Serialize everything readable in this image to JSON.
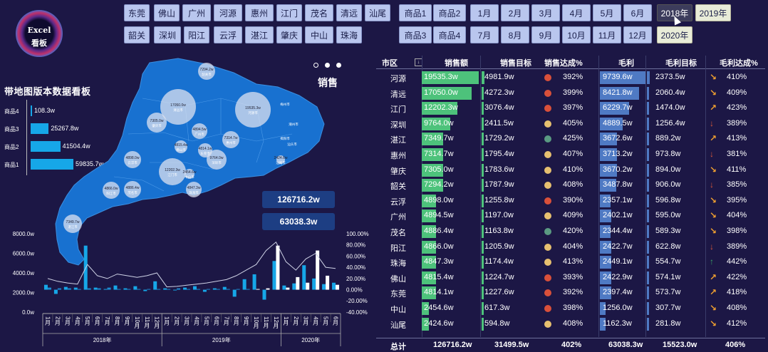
{
  "logo": {
    "line1": "Excel",
    "line2": "看板"
  },
  "slicers": {
    "cities": [
      "东莞",
      "佛山",
      "广州",
      "河源",
      "惠州",
      "江门",
      "茂名",
      "清远",
      "汕尾",
      "韶关",
      "深圳",
      "阳江",
      "云浮",
      "湛江",
      "肇庆",
      "中山",
      "珠海"
    ],
    "products": [
      "商品1",
      "商品2",
      "商品3",
      "商品4"
    ],
    "months": [
      "1月",
      "2月",
      "3月",
      "4月",
      "5月",
      "6月",
      "7月",
      "8月",
      "9月",
      "10月",
      "11月",
      "12月"
    ],
    "years": [
      "2018年",
      "2019年",
      "2020年"
    ],
    "selected_year": "2018年"
  },
  "left": {
    "title": "带地图版本数据看板",
    "products": [
      {
        "label": "商品4",
        "value": "108.3w",
        "num": 108.3
      },
      {
        "label": "商品3",
        "value": "25267.8w",
        "num": 25267.8
      },
      {
        "label": "商品2",
        "value": "41504.4w",
        "num": 41504.4
      },
      {
        "label": "商品1",
        "value": "59835.7w",
        "num": 59835.7
      }
    ]
  },
  "map": {
    "title": "销售",
    "kpi_sales": "126716.2w",
    "kpi_profit": "63038.3w",
    "bubbles": [
      {
        "label": "7294.2w",
        "city": "韶关市"
      },
      {
        "label": "17050.0w",
        "city": "清远市"
      },
      {
        "label": "19535.3w",
        "city": "河源市"
      },
      {
        "label": "7305.0w",
        "city": "肇庆市"
      },
      {
        "label": "4894.5w",
        "city": "广州市"
      },
      {
        "label": "7314.7w",
        "city": "惠州市"
      },
      {
        "label": "4898.0w",
        "city": "云浮市"
      },
      {
        "label": "4815.4w",
        "city": "佛山市"
      },
      {
        "label": "4814.1w",
        "city": "东莞市"
      },
      {
        "label": "9764.0w",
        "city": "深圳市"
      },
      {
        "label": "12202.3w",
        "city": "江门市"
      },
      {
        "label": "2454.6w",
        "city": "中山市"
      },
      {
        "label": "4866.0w",
        "city": "阳江市"
      },
      {
        "label": "4886.4w",
        "city": "茂名市"
      },
      {
        "label": "4847.3w",
        "city": "珠海市"
      },
      {
        "label": "2424.6w",
        "city": "汕尾市"
      },
      {
        "label": "7349.7w",
        "city": "湛江市"
      }
    ],
    "extra_cities": [
      "梅州市",
      "潮州市",
      "揭阳市",
      "汕头市"
    ]
  },
  "table": {
    "headers": [
      "市区",
      "销售额",
      "销售目标",
      "销售达成%",
      "毛利",
      "毛利目标",
      "毛利达成%"
    ],
    "rows": [
      {
        "city": "河源",
        "sales": "19535.3w",
        "target": "4981.9w",
        "rate": "392%",
        "dot": "#d9503a",
        "gp": "9739.6w",
        "gpt": "2373.5w",
        "arrow": "↘",
        "acolor": "#f0a030",
        "gprate": "410%"
      },
      {
        "city": "清远",
        "sales": "17050.0w",
        "target": "4272.3w",
        "rate": "399%",
        "dot": "#d9503a",
        "gp": "8421.8w",
        "gpt": "2060.4w",
        "arrow": "↘",
        "acolor": "#f0a030",
        "gprate": "409%"
      },
      {
        "city": "江门",
        "sales": "12202.3w",
        "target": "3076.4w",
        "rate": "397%",
        "dot": "#d9503a",
        "gp": "6229.7w",
        "gpt": "1474.0w",
        "arrow": "↗",
        "acolor": "#f0a030",
        "gprate": "423%"
      },
      {
        "city": "深圳",
        "sales": "9764.0w",
        "target": "2411.5w",
        "rate": "405%",
        "dot": "#e6c070",
        "gp": "4889.5w",
        "gpt": "1256.4w",
        "arrow": "↓",
        "acolor": "#e05a3a",
        "gprate": "389%"
      },
      {
        "city": "湛江",
        "sales": "7349.7w",
        "target": "1729.2w",
        "rate": "425%",
        "dot": "#5a9a82",
        "gp": "3672.6w",
        "gpt": "889.2w",
        "arrow": "↗",
        "acolor": "#f0a030",
        "gprate": "413%"
      },
      {
        "city": "惠州",
        "sales": "7314.7w",
        "target": "1795.4w",
        "rate": "407%",
        "dot": "#e6c070",
        "gp": "3713.2w",
        "gpt": "973.8w",
        "arrow": "↓",
        "acolor": "#e05a3a",
        "gprate": "381%"
      },
      {
        "city": "肇庆",
        "sales": "7305.0w",
        "target": "1783.6w",
        "rate": "410%",
        "dot": "#e6c070",
        "gp": "3670.2w",
        "gpt": "894.0w",
        "arrow": "↘",
        "acolor": "#f0a030",
        "gprate": "411%"
      },
      {
        "city": "韶关",
        "sales": "7294.2w",
        "target": "1787.9w",
        "rate": "408%",
        "dot": "#e6c070",
        "gp": "3487.8w",
        "gpt": "906.0w",
        "arrow": "↓",
        "acolor": "#e05a3a",
        "gprate": "385%"
      },
      {
        "city": "云浮",
        "sales": "4898.0w",
        "target": "1255.8w",
        "rate": "390%",
        "dot": "#d9503a",
        "gp": "2357.1w",
        "gpt": "596.8w",
        "arrow": "↘",
        "acolor": "#f0a030",
        "gprate": "395%"
      },
      {
        "city": "广州",
        "sales": "4894.5w",
        "target": "1197.0w",
        "rate": "409%",
        "dot": "#e6c070",
        "gp": "2402.1w",
        "gpt": "595.0w",
        "arrow": "↘",
        "acolor": "#f0a030",
        "gprate": "404%"
      },
      {
        "city": "茂名",
        "sales": "4886.4w",
        "target": "1163.8w",
        "rate": "420%",
        "dot": "#5a9a82",
        "gp": "2344.4w",
        "gpt": "589.3w",
        "arrow": "↘",
        "acolor": "#f0a030",
        "gprate": "398%"
      },
      {
        "city": "阳江",
        "sales": "4866.0w",
        "target": "1205.9w",
        "rate": "404%",
        "dot": "#e6c070",
        "gp": "2422.7w",
        "gpt": "622.8w",
        "arrow": "↓",
        "acolor": "#e05a3a",
        "gprate": "389%"
      },
      {
        "city": "珠海",
        "sales": "4847.3w",
        "target": "1174.4w",
        "rate": "413%",
        "dot": "#e6c070",
        "gp": "2449.1w",
        "gpt": "554.7w",
        "arrow": "↑",
        "acolor": "#3aa56a",
        "gprate": "442%"
      },
      {
        "city": "佛山",
        "sales": "4815.4w",
        "target": "1224.7w",
        "rate": "393%",
        "dot": "#d9503a",
        "gp": "2422.9w",
        "gpt": "574.1w",
        "arrow": "↗",
        "acolor": "#f0a030",
        "gprate": "422%"
      },
      {
        "city": "东莞",
        "sales": "4814.1w",
        "target": "1227.6w",
        "rate": "392%",
        "dot": "#d9503a",
        "gp": "2397.4w",
        "gpt": "573.7w",
        "arrow": "↗",
        "acolor": "#f0a030",
        "gprate": "418%"
      },
      {
        "city": "中山",
        "sales": "2454.6w",
        "target": "617.3w",
        "rate": "398%",
        "dot": "#d9503a",
        "gp": "1256.0w",
        "gpt": "307.7w",
        "arrow": "↘",
        "acolor": "#f0a030",
        "gprate": "408%"
      },
      {
        "city": "汕尾",
        "sales": "2424.6w",
        "target": "594.8w",
        "rate": "408%",
        "dot": "#e6c070",
        "gp": "1162.3w",
        "gpt": "281.8w",
        "arrow": "↘",
        "acolor": "#f0a030",
        "gprate": "412%"
      }
    ],
    "total": {
      "label": "总计",
      "sales": "126716.2w",
      "target": "31499.5w",
      "rate": "402%",
      "gp": "63038.3w",
      "gpt": "15523.0w",
      "gprate": "406%"
    }
  },
  "chart_data": {
    "type": "bar",
    "yticks_left": [
      "8000.0w",
      "6000.0w",
      "4000.0w",
      "2000.0w",
      "0.0w"
    ],
    "yticks_right": [
      "100.00%",
      "80.00%",
      "60.00%",
      "40.00%",
      "20.00%",
      "0.00%",
      "-20.00%",
      "-40.00%"
    ],
    "ylim_left": [
      0,
      8000
    ],
    "ylim_right": [
      -40,
      100
    ],
    "years": [
      "2018年",
      "2019年",
      "2020年"
    ],
    "months": [
      "1月",
      "2月",
      "3月",
      "4月",
      "5月",
      "6月",
      "7月",
      "8月",
      "9月",
      "10月",
      "11月",
      "12月",
      "1月",
      "2月",
      "3月",
      "4月",
      "5月",
      "6月",
      "7月",
      "8月",
      "9月",
      "10月",
      "11月",
      "12月",
      "1月",
      "2月",
      "3月",
      "4月",
      "5月",
      "6月"
    ],
    "series": [
      {
        "values": [
          700,
          600,
          400,
          300,
          6300,
          300,
          100,
          600,
          200,
          500,
          200,
          1200,
          200,
          100,
          300,
          500,
          300,
          200,
          400,
          1000,
          1500,
          2200,
          3100,
          4100,
          600,
          900,
          3500,
          1600,
          800,
          1000
        ]
      },
      {
        "values": [
          300,
          200,
          200,
          100,
          200,
          200,
          300,
          100,
          100,
          100,
          100,
          100,
          100,
          200,
          100,
          100,
          100,
          100,
          100,
          100,
          100,
          100,
          200,
          6300,
          300,
          1800,
          1000,
          5600,
          2000,
          700
        ]
      },
      {
        "values": [
          20,
          15,
          12,
          10,
          45,
          25,
          20,
          28,
          25,
          22,
          25,
          30,
          5,
          6,
          8,
          10,
          12,
          15,
          18,
          25,
          35,
          45,
          70,
          85,
          50,
          35,
          55,
          65,
          40,
          38
        ]
      }
    ]
  }
}
